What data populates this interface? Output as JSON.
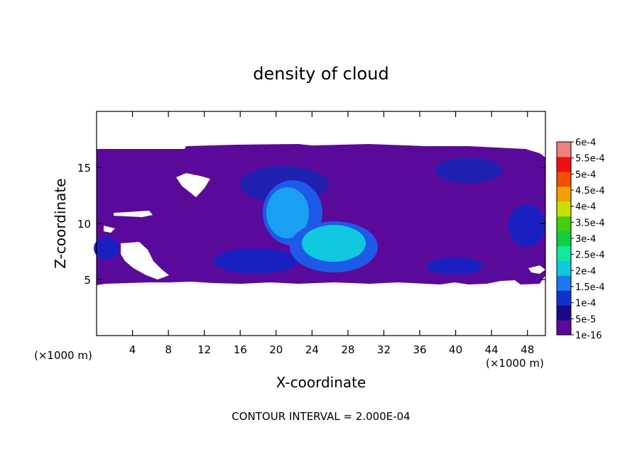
{
  "chart_data": {
    "type": "heatmap",
    "title": "density of cloud",
    "xlabel": "X-coordinate",
    "ylabel": "Z-coordinate",
    "x_unit": "(×1000 m)",
    "z_unit": "(×1000 m)",
    "xlim": [
      0,
      50
    ],
    "ylim": [
      0,
      20
    ],
    "x_ticks": [
      "4",
      "8",
      "12",
      "16",
      "20",
      "24",
      "28",
      "32",
      "36",
      "40",
      "44",
      "48"
    ],
    "y_ticks": [
      "5",
      "10",
      "15"
    ],
    "footer": "CONTOUR INTERVAL = 2.000E-04",
    "colorbar": {
      "labels": [
        "1e-16",
        "5e-5",
        "1e-4",
        "1.5e-4",
        "2e-4",
        "2.5e-4",
        "3e-4",
        "3.5e-4",
        "4e-4",
        "4.5e-4",
        "5e-4",
        "5.5e-4",
        "6e-4"
      ],
      "colors": [
        "#5a0a9a",
        "#1a0a8a",
        "#1030d0",
        "#1a78f0",
        "#10c8e0",
        "#10e8a0",
        "#10d040",
        "#40d010",
        "#c8e000",
        "#f0a000",
        "#f05000",
        "#f01010",
        "#f08080"
      ]
    },
    "field_regions": [
      {
        "level": "1e-16",
        "x": [
          0,
          50
        ],
        "z": [
          4.6,
          16.6
        ]
      },
      {
        "level": "5e-5",
        "x": [
          16,
          24
        ],
        "z": [
          12,
          15
        ]
      },
      {
        "level": "1.5e-4",
        "x": [
          18,
          25
        ],
        "z": [
          8,
          14
        ]
      },
      {
        "level": "2e-4",
        "x": [
          22,
          30
        ],
        "z": [
          6.5,
          10
        ]
      }
    ]
  }
}
